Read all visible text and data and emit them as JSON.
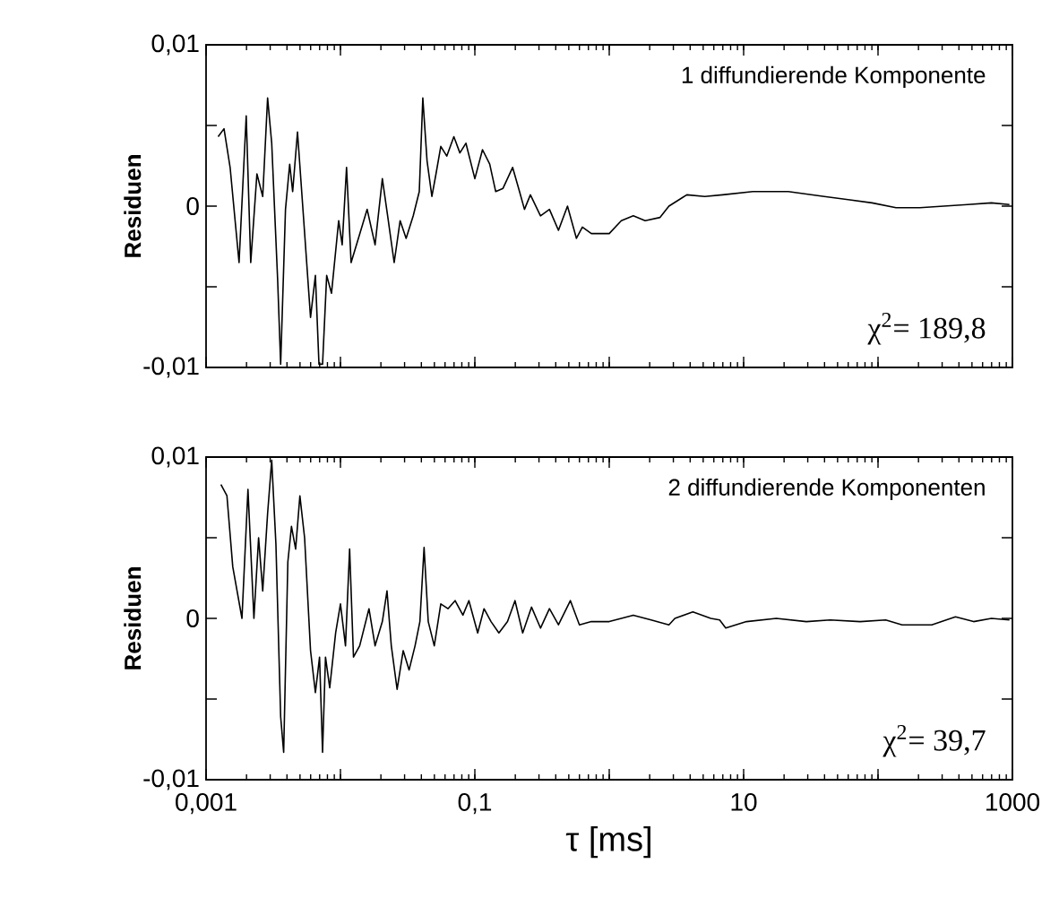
{
  "chart_data": [
    {
      "type": "line",
      "ylabel": "Residuen",
      "log": "x",
      "tick_labels": "y",
      "xlim": [
        0.001,
        1000
      ],
      "ylim": [
        -0.01,
        0.01
      ],
      "xticks": [
        {
          "value": 0.001,
          "label": null
        },
        {
          "value": 0.01,
          "label": null
        },
        {
          "value": 0.1,
          "label": null
        },
        {
          "value": 1,
          "label": null
        },
        {
          "value": 10,
          "label": null
        },
        {
          "value": 100,
          "label": null
        },
        {
          "value": 1000,
          "label": null
        }
      ],
      "yticks": [
        {
          "value": -0.01,
          "label": "-0,01"
        },
        {
          "value": -0.005,
          "label": null
        },
        {
          "value": 0,
          "label": "0"
        },
        {
          "value": 0.005,
          "label": null
        },
        {
          "value": 0.01,
          "label": "0,01"
        }
      ],
      "annotations": [
        "1 diffundierende Komponente",
        "χ$^{2}$= 189,8"
      ],
      "series": [
        {
          "color": "#000000",
          "x": [
            0.00123,
            0.00136,
            0.00151,
            0.00176,
            0.00199,
            0.00215,
            0.00239,
            0.00264,
            0.00287,
            0.00308,
            0.00341,
            0.00359,
            0.0039,
            0.00419,
            0.00441,
            0.00479,
            0.0053,
            0.00599,
            0.00651,
            0.00692,
            0.00736,
            0.0079,
            0.00858,
            0.0097,
            0.0103,
            0.0111,
            0.012,
            0.0136,
            0.0158,
            0.0181,
            0.0205,
            0.0227,
            0.0251,
            0.0278,
            0.0308,
            0.0348,
            0.0386,
            0.041,
            0.0441,
            0.0479,
            0.0514,
            0.0558,
            0.0618,
            0.0698,
            0.0774,
            0.0858,
            0.1,
            0.114,
            0.129,
            0.143,
            0.162,
            0.191,
            0.215,
            0.234,
            0.259,
            0.308,
            0.359,
            0.419,
            0.489,
            0.57,
            0.631,
            0.736,
            1.0,
            1.23,
            1.51,
            1.85,
            2.39,
            2.78,
            3.78,
            5.14,
            6.98,
            11.7,
            21.5,
            39.8,
            59.9,
            90.3,
            136,
            205,
            308,
            464,
            698,
            950
          ],
          "values": [
            0.0043,
            0.0048,
            0.0024,
            -0.0035,
            0.0056,
            -0.0035,
            0.002,
            0.0006,
            0.0067,
            0.0039,
            -0.0046,
            -0.0098,
            -0.0002,
            0.0026,
            0.0009,
            0.0046,
            -0.0006,
            -0.0069,
            -0.0043,
            -0.0098,
            -0.0098,
            -0.0043,
            -0.0054,
            -0.0009,
            -0.0024,
            0.0024,
            -0.0035,
            -0.002,
            -0.0002,
            -0.0024,
            0.0017,
            -0.0009,
            -0.0035,
            -0.0009,
            -0.002,
            -0.0006,
            0.0009,
            0.0067,
            0.0028,
            0.0006,
            0.002,
            0.0037,
            0.0031,
            0.0043,
            0.0033,
            0.0039,
            0.0017,
            0.0035,
            0.0026,
            0.0009,
            0.0011,
            0.0024,
            0.0009,
            -0.0002,
            0.0007,
            -0.0006,
            -0.0002,
            -0.0015,
            0.0,
            -0.002,
            -0.0013,
            -0.0017,
            -0.0017,
            -0.0009,
            -0.0006,
            -0.0009,
            -0.0007,
            0.0,
            0.0007,
            0.0006,
            0.0007,
            0.0009,
            0.0009,
            0.0006,
            0.0004,
            0.0002,
            -0.0001,
            -0.0001,
            0.0,
            0.0001,
            0.0002,
            0.0001
          ]
        }
      ]
    },
    {
      "type": "line",
      "xlabel": "τ [ms]",
      "ylabel": "Residuen",
      "log": "x",
      "xlim": [
        0.001,
        1000
      ],
      "ylim": [
        -0.01,
        0.01
      ],
      "xticks": [
        {
          "value": 0.001,
          "label": "0,001"
        },
        {
          "value": 0.01,
          "label": null
        },
        {
          "value": 0.1,
          "label": "0,1"
        },
        {
          "value": 1,
          "label": null
        },
        10,
        {
          "value": 100,
          "label": null
        },
        1000
      ],
      "yticks": [
        {
          "value": -0.01,
          "label": "-0,01"
        },
        {
          "value": -0.005,
          "label": null
        },
        {
          "value": 0,
          "label": "0"
        },
        {
          "value": 0.005,
          "label": null
        },
        {
          "value": 0.01,
          "label": "0,01"
        }
      ],
      "annotations": [
        "2 diffundierende Komponenten",
        "χ$^{2}$= 39,7"
      ],
      "series": [
        {
          "color": "#000000",
          "x": [
            0.00129,
            0.00143,
            0.00158,
            0.00185,
            0.00205,
            0.00227,
            0.00246,
            0.00264,
            0.00287,
            0.00308,
            0.00331,
            0.00359,
            0.00378,
            0.00406,
            0.00432,
            0.00464,
            0.00499,
            0.00541,
            0.00599,
            0.00651,
            0.00699,
            0.00736,
            0.00774,
            0.00832,
            0.00921,
            0.01,
            0.0109,
            0.0117,
            0.0125,
            0.0139,
            0.0163,
            0.0181,
            0.0205,
            0.0222,
            0.0239,
            0.0264,
            0.0293,
            0.0324,
            0.0359,
            0.039,
            0.0419,
            0.045,
            0.0499,
            0.0558,
            0.0631,
            0.0713,
            0.0815,
            0.0903,
            0.105,
            0.117,
            0.132,
            0.151,
            0.175,
            0.199,
            0.227,
            0.264,
            0.308,
            0.359,
            0.419,
            0.514,
            0.6,
            0.736,
            1.0,
            1.23,
            1.51,
            2.05,
            2.78,
            3.08,
            4.19,
            5.7,
            6.63,
            7.36,
            10.5,
            17.5,
            29.3,
            44.1,
            73.6,
            114,
            151,
            251,
            377,
            514,
            698,
            950
          ],
          "values": [
            0.0083,
            0.0076,
            0.0032,
            0.0,
            0.008,
            0.0,
            0.005,
            0.0017,
            0.0065,
            0.0098,
            0.0046,
            -0.0061,
            -0.0083,
            0.0035,
            0.0057,
            0.0043,
            0.0076,
            0.005,
            -0.002,
            -0.0046,
            -0.0024,
            -0.0083,
            -0.0024,
            -0.0043,
            -0.0009,
            0.0009,
            -0.0017,
            0.0043,
            -0.0024,
            -0.0017,
            0.0006,
            -0.0017,
            -0.0002,
            0.0017,
            -0.0017,
            -0.0044,
            -0.002,
            -0.0032,
            -0.0017,
            -0.0002,
            0.0044,
            -0.0002,
            -0.0017,
            0.0009,
            0.0006,
            0.0011,
            0.0002,
            0.0011,
            -0.0009,
            0.0006,
            -0.0002,
            -0.0009,
            -0.0002,
            0.0011,
            -0.0009,
            0.0007,
            -0.0006,
            0.0006,
            -0.0004,
            0.0011,
            -0.0004,
            -0.0002,
            -0.0002,
            0.0,
            0.0002,
            -0.0001,
            -0.0004,
            0.0,
            0.0004,
            0.0,
            -0.0001,
            -0.0006,
            -0.0002,
            0.0,
            -0.0002,
            -0.0001,
            -0.0002,
            -0.0001,
            -0.0004,
            -0.0004,
            0.0001,
            -0.0002,
            0.0,
            -0.0001
          ]
        }
      ]
    }
  ]
}
